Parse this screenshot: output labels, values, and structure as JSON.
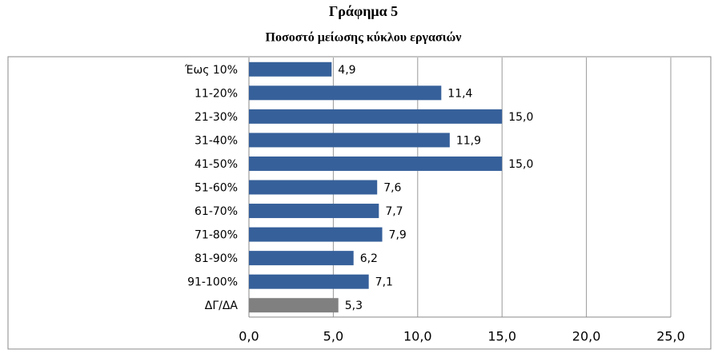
{
  "chart_data": {
    "type": "hbar",
    "title": "Γράφημα 5",
    "subtitle": "Ποσοστό μείωσης κύκλου εργασιών",
    "categories": [
      "Έως 10%",
      "11-20%",
      "21-30%",
      "31-40%",
      "41-50%",
      "51-60%",
      "61-70%",
      "71-80%",
      "81-90%",
      "91-100%",
      "ΔΓ/ΔΑ"
    ],
    "values": [
      4.9,
      11.4,
      15.0,
      11.9,
      15.0,
      7.6,
      7.7,
      7.9,
      6.2,
      7.1,
      5.3
    ],
    "value_labels": [
      "4,9",
      "11,4",
      "15,0",
      "11,9",
      "15,0",
      "7,6",
      "7,7",
      "7,9",
      "6,2",
      "7,1",
      "5,3"
    ],
    "colors": [
      "#36609a",
      "#36609a",
      "#36609a",
      "#36609a",
      "#36609a",
      "#36609a",
      "#36609a",
      "#36609a",
      "#36609a",
      "#36609a",
      "#808080"
    ],
    "xlim": [
      0,
      25
    ],
    "xticks": [
      {
        "value": 0,
        "label": "0,0"
      },
      {
        "value": 5,
        "label": "5,0"
      },
      {
        "value": 10,
        "label": "10,0"
      },
      {
        "value": 15,
        "label": "15,0"
      },
      {
        "value": 20,
        "label": "20,0"
      },
      {
        "value": 25,
        "label": "25,0"
      }
    ],
    "grid": true
  }
}
